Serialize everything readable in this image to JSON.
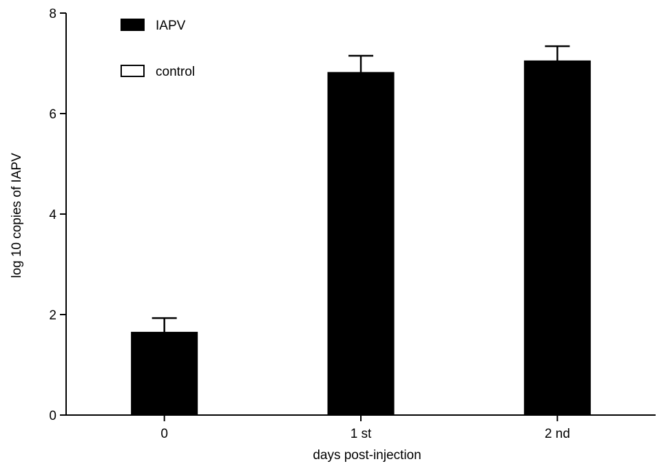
{
  "chart_data": {
    "type": "bar",
    "title": "",
    "xlabel": "days  post-injection",
    "ylabel": "log 10  copies  of  IAPV",
    "categories": [
      "0",
      "1 st",
      "2 nd"
    ],
    "series": [
      {
        "name": "IAPV",
        "color": "#000000",
        "values": [
          1.65,
          6.82,
          7.05
        ],
        "error": [
          0.28,
          0.33,
          0.29
        ]
      },
      {
        "name": "control",
        "color": "#ffffff",
        "values": [
          0,
          0,
          0
        ],
        "error": [
          0,
          0,
          0
        ]
      }
    ],
    "ylim": [
      0,
      8
    ],
    "yticks": [
      0,
      2,
      4,
      6,
      8
    ],
    "grid": false,
    "legend_position": "top-left"
  }
}
